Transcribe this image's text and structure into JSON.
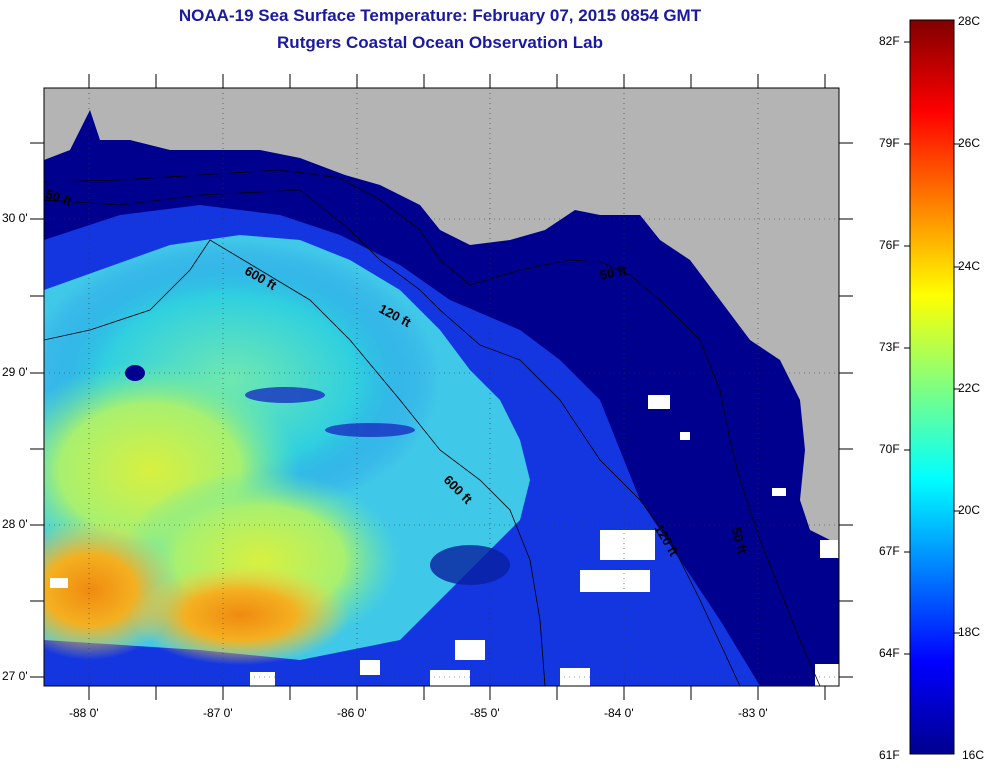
{
  "header": {
    "title": "NOAA-19 Sea Surface Temperature:  February 07, 2015 0854 GMT",
    "subtitle": "Rutgers Coastal Ocean Observation Lab"
  },
  "map": {
    "lon_labels": [
      "-88 0'",
      "-87 0'",
      "-86 0'",
      "-85 0'",
      "-84 0'",
      "-83 0'"
    ],
    "lat_labels": [
      "30 0'",
      "29 0'",
      "28 0'",
      "27 0'"
    ],
    "contour_labels": [
      "50 ft",
      "600 ft",
      "120 ft",
      "50 ft",
      "600 ft",
      "120 ft",
      "50 ft"
    ],
    "colors": {
      "land": "#b4b4b4",
      "cloud": "#ffffff",
      "cold": "#00008f",
      "warm": "#f07000"
    }
  },
  "colorbar": {
    "fahrenheit_labels": [
      "82F",
      "79F",
      "76F",
      "73F",
      "70F",
      "67F",
      "64F",
      "61F"
    ],
    "celsius_labels": [
      "28C",
      "26C",
      "24C",
      "22C",
      "20C",
      "18C",
      "16C"
    ],
    "range_c": [
      16,
      28
    ],
    "colormap": "jet"
  }
}
